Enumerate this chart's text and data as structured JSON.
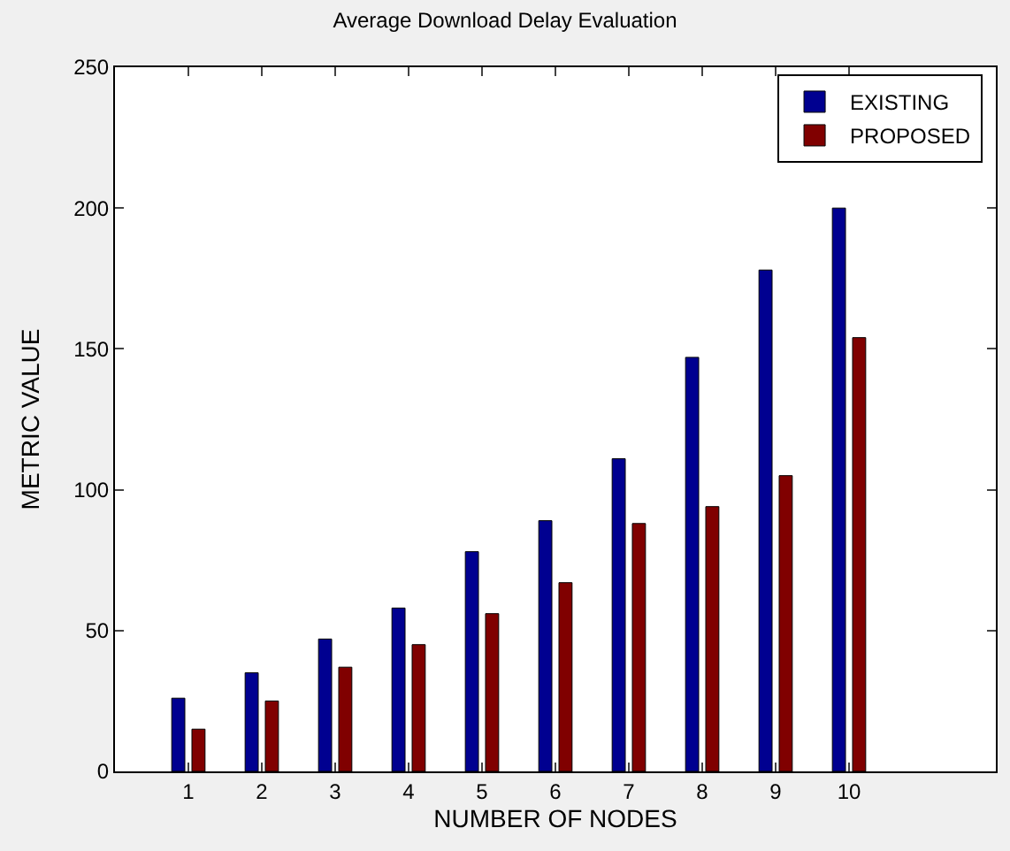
{
  "chart_data": {
    "type": "bar",
    "title": "Average Download Delay Evaluation",
    "xlabel": "NUMBER OF NODES",
    "ylabel": "METRIC VALUE",
    "x": [
      1,
      2,
      3,
      4,
      5,
      6,
      7,
      8,
      9,
      10
    ],
    "series": [
      {
        "name": "EXISTING",
        "color": "#000090",
        "values": [
          26,
          35,
          47,
          58,
          78,
          89,
          111,
          147,
          178,
          200
        ]
      },
      {
        "name": "PROPOSED",
        "color": "#800000",
        "values": [
          15,
          25,
          37,
          45,
          56,
          67,
          88,
          94,
          105,
          154
        ]
      }
    ],
    "xlim": [
      0,
      12
    ],
    "xticks": [
      1,
      2,
      3,
      4,
      5,
      6,
      7,
      8,
      9,
      10
    ],
    "ylim": [
      0,
      250
    ],
    "yticks": [
      0,
      50,
      100,
      150,
      200,
      250
    ],
    "legend": "top right"
  }
}
